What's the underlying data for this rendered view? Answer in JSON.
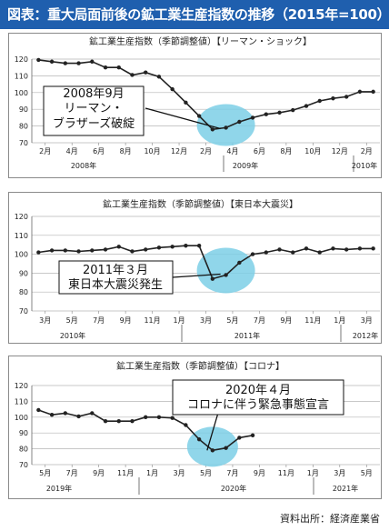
{
  "header": {
    "title": "図表：重大局面前後の鉱工業生産指数の推移（2015年=100）"
  },
  "source": "資料出所：経済産業省",
  "colors": {
    "header_bg": "#1f5fae",
    "highlight": "#7ccfe6",
    "line": "#222222",
    "grid": "#b5b5b5"
  },
  "chart_data": [
    {
      "type": "line",
      "title": "鉱工業生産指数（季節調整値）【リーマン・ショック】",
      "ylim": [
        70,
        120
      ],
      "yticks": [
        70,
        80,
        90,
        100,
        110,
        120
      ],
      "x_tick_labels": [
        "2月",
        "4月",
        "6月",
        "8月",
        "10月",
        "12月",
        "2月",
        "4月",
        "6月",
        "8月",
        "10月",
        "12月",
        "2月"
      ],
      "year_labels": [
        "2008年",
        "2009年",
        "2010年"
      ],
      "x": [
        "2008-01",
        "2008-02",
        "2008-03",
        "2008-04",
        "2008-05",
        "2008-06",
        "2008-07",
        "2008-08",
        "2008-09",
        "2008-10",
        "2008-11",
        "2008-12",
        "2009-01",
        "2009-02",
        "2009-03",
        "2009-04",
        "2009-05",
        "2009-06",
        "2009-07",
        "2009-08",
        "2009-09",
        "2009-10",
        "2009-11",
        "2009-12",
        "2010-01",
        "2010-02"
      ],
      "values": [
        119.5,
        118.5,
        117.5,
        117.5,
        118.5,
        115,
        115,
        110.5,
        112,
        109.5,
        102,
        94,
        86,
        78,
        79,
        82.5,
        85,
        87,
        88,
        89.5,
        92,
        95,
        96.5,
        97.5,
        100.5,
        100.5
      ],
      "annotation": [
        "2008年9月",
        "リーマン・",
        "ブラザーズ破綻"
      ],
      "highlight_month": "2009-03"
    },
    {
      "type": "line",
      "title": "鉱工業生産指数（季節調整値）【東日本大震災】",
      "ylim": [
        70,
        120
      ],
      "yticks": [
        70,
        80,
        90,
        100,
        110,
        120
      ],
      "x_tick_labels": [
        "3月",
        "5月",
        "7月",
        "9月",
        "11月",
        "1月",
        "3月",
        "5月",
        "7月",
        "9月",
        "11月",
        "1月",
        "3月"
      ],
      "year_labels": [
        "2010年",
        "2011年",
        "2012年"
      ],
      "x": [
        "2010-02",
        "2010-03",
        "2010-04",
        "2010-05",
        "2010-06",
        "2010-07",
        "2010-08",
        "2010-09",
        "2010-10",
        "2010-11",
        "2010-12",
        "2011-01",
        "2011-02",
        "2011-03",
        "2011-04",
        "2011-05",
        "2011-06",
        "2011-07",
        "2011-08",
        "2011-09",
        "2011-10",
        "2011-11",
        "2011-12",
        "2012-01",
        "2012-02",
        "2012-03"
      ],
      "values": [
        101,
        102,
        102,
        101.5,
        102,
        102.5,
        104,
        101.5,
        102.5,
        103.5,
        104,
        104.5,
        104.5,
        87,
        89,
        95.5,
        100,
        101,
        102.5,
        101,
        103,
        101,
        103,
        102.5,
        103,
        103
      ],
      "annotation": [
        "2011年３月",
        "東日本大震災発生"
      ],
      "highlight_month": "2011-04"
    },
    {
      "type": "line",
      "title": "鉱工業生産指数（季節調整値）【コロナ】",
      "ylim": [
        70,
        120
      ],
      "yticks": [
        70,
        80,
        90,
        100,
        110,
        120
      ],
      "x_tick_labels": [
        "5月",
        "7月",
        "9月",
        "11月",
        "1月",
        "3月",
        "5月",
        "7月",
        "9月",
        "11月",
        "1月",
        "3月",
        "5月"
      ],
      "year_labels": [
        "2019年",
        "2020年",
        "2021年"
      ],
      "x": [
        "2019-04",
        "2019-05",
        "2019-06",
        "2019-07",
        "2019-08",
        "2019-09",
        "2019-10",
        "2019-11",
        "2019-12",
        "2020-01",
        "2020-02",
        "2020-03",
        "2020-04",
        "2020-05",
        "2020-06",
        "2020-07",
        "2020-08"
      ],
      "values": [
        104.5,
        101.5,
        102.5,
        100.5,
        102.5,
        97.5,
        97.5,
        97.5,
        100,
        100,
        99.5,
        95,
        86,
        79,
        80.5,
        87,
        88.5
      ],
      "annotation": [
        "2020年４月",
        "コロナに伴う緊急事態宣言"
      ],
      "highlight_month": "2020-05"
    }
  ]
}
